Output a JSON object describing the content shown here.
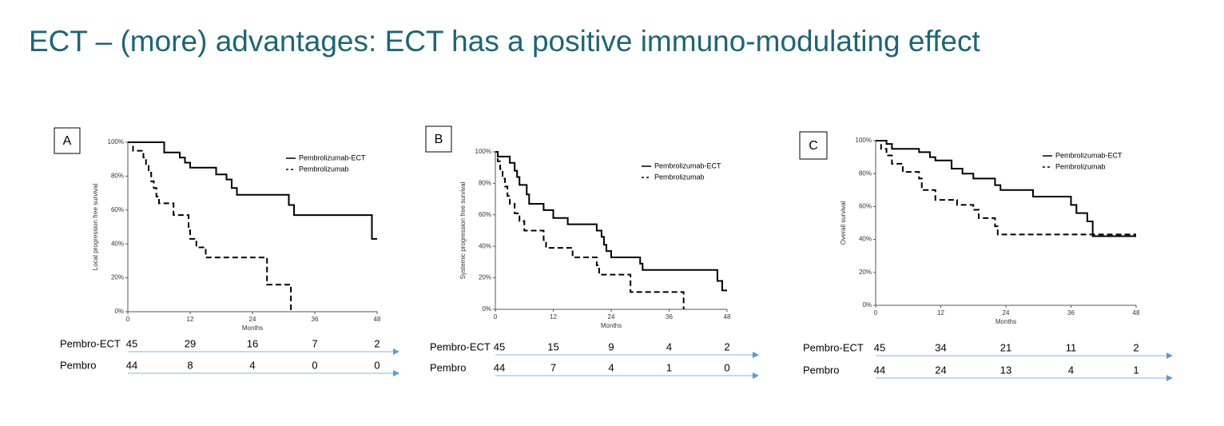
{
  "title": "ECT – (more) advantages: ECT has a positive immuno-modulating effect",
  "chart_data": [
    {
      "type": "step",
      "panel": "A",
      "ylabel": "Local progression free survival",
      "xlabel": "Months",
      "xlim": [
        0,
        48
      ],
      "xticks": [
        0,
        12,
        24,
        36,
        48
      ],
      "ylim": [
        0,
        100
      ],
      "yticks": [
        {
          "value": 0,
          "label": "0%"
        },
        {
          "value": 20,
          "label": "20%"
        },
        {
          "value": 40,
          "label": "40%"
        },
        {
          "value": 60,
          "label": "60%"
        },
        {
          "value": 80,
          "label": "80%"
        },
        {
          "value": 100,
          "label": "100%"
        }
      ],
      "series": [
        {
          "name": "Pembrolizumab-ECT",
          "color": "#000000",
          "line_style": "solid",
          "x": [
            0,
            7,
            10,
            11,
            12,
            17,
            19,
            20,
            21,
            31,
            32,
            47,
            48
          ],
          "values": [
            100,
            94,
            91,
            88,
            85,
            81,
            78,
            73,
            69,
            63,
            57,
            43,
            43
          ]
        },
        {
          "name": "Pembrolizumab",
          "color": "#000000",
          "line_style": "dashed",
          "x": [
            0,
            1,
            3,
            3.5,
            4,
            4.5,
            5,
            5.5,
            6,
            8.8,
            11.7,
            12,
            13.2,
            15,
            26.8,
            31.4
          ],
          "values": [
            100,
            95,
            91,
            86,
            82,
            77,
            73,
            68,
            64,
            57,
            48,
            43,
            38,
            32,
            16,
            0
          ]
        }
      ],
      "risk_table": {
        "rows": [
          {
            "label": "Pembro-ECT",
            "values": [
              45,
              29,
              16,
              7,
              2
            ]
          },
          {
            "label": "Pembro",
            "values": [
              44,
              8,
              4,
              0,
              0
            ]
          }
        ]
      }
    },
    {
      "type": "step",
      "panel": "B",
      "ylabel": "Systemic progression free survival",
      "xlabel": "Months",
      "xlim": [
        0,
        48
      ],
      "xticks": [
        0,
        12,
        24,
        36,
        48
      ],
      "ylim": [
        0,
        100
      ],
      "yticks": [
        {
          "value": 0,
          "label": "0%"
        },
        {
          "value": 20,
          "label": "20%"
        },
        {
          "value": 40,
          "label": "40%"
        },
        {
          "value": 60,
          "label": "60%"
        },
        {
          "value": 80,
          "label": "80%"
        },
        {
          "value": 100,
          "label": "100%"
        }
      ],
      "series": [
        {
          "name": "Pembrolizumab-ECT",
          "color": "#000000",
          "line_style": "solid",
          "x": [
            0,
            0.5,
            3,
            4,
            4.5,
            5,
            6.5,
            7,
            10,
            12,
            15,
            21,
            22,
            22.5,
            23,
            24,
            30,
            30.5,
            46,
            47,
            48
          ],
          "values": [
            100,
            97,
            93,
            88,
            84,
            79,
            73,
            67,
            63,
            58,
            54,
            50,
            46,
            41,
            37,
            33,
            29,
            25,
            18,
            12,
            12
          ]
        },
        {
          "name": "Pembrolizumab",
          "color": "#000000",
          "line_style": "dashed",
          "x": [
            0,
            0.5,
            1,
            1.5,
            2,
            2.5,
            3,
            4,
            5,
            6,
            10,
            10.5,
            16,
            21,
            21.5,
            28,
            39
          ],
          "values": [
            100,
            94,
            89,
            83,
            78,
            72,
            67,
            61,
            56,
            50,
            44,
            39,
            33,
            28,
            22,
            11,
            0
          ]
        }
      ],
      "risk_table": {
        "rows": [
          {
            "label": "Pembro-ECT",
            "values": [
              45,
              15,
              9,
              4,
              2
            ]
          },
          {
            "label": "Pembro",
            "values": [
              44,
              7,
              4,
              1,
              0
            ]
          }
        ]
      }
    },
    {
      "type": "step",
      "panel": "C",
      "ylabel": "Overall survival",
      "xlabel": "Months",
      "xlim": [
        0,
        48
      ],
      "xticks": [
        0,
        12,
        24,
        36,
        48
      ],
      "ylim": [
        0,
        100
      ],
      "yticks": [
        {
          "value": 0,
          "label": "0%"
        },
        {
          "value": 20,
          "label": "20%"
        },
        {
          "value": 40,
          "label": "40%"
        },
        {
          "value": 60,
          "label": "60%"
        },
        {
          "value": 80,
          "label": "80%"
        },
        {
          "value": 100,
          "label": "100%"
        }
      ],
      "series": [
        {
          "name": "Pembrolizumab-ECT",
          "color": "#000000",
          "line_style": "solid",
          "x": [
            0,
            2,
            3,
            8,
            10,
            11,
            14,
            16,
            18,
            22,
            23,
            29,
            36,
            37,
            39,
            40,
            48
          ],
          "values": [
            100,
            98,
            95,
            93,
            90,
            88,
            83,
            80,
            77,
            73,
            70,
            66,
            61,
            56,
            51,
            42,
            42
          ]
        },
        {
          "name": "Pembrolizumab",
          "color": "#000000",
          "line_style": "dashed",
          "x": [
            0,
            1,
            2,
            3,
            5,
            8,
            8.5,
            11,
            15,
            18,
            19,
            22,
            22.5,
            48
          ],
          "values": [
            100,
            95,
            91,
            86,
            81,
            77,
            70,
            64,
            61,
            58,
            53,
            48,
            43,
            43
          ]
        }
      ],
      "risk_table": {
        "rows": [
          {
            "label": "Pembro-ECT",
            "values": [
              45,
              34,
              21,
              11,
              2
            ]
          },
          {
            "label": "Pembro",
            "values": [
              44,
              24,
              13,
              4,
              1
            ]
          }
        ]
      }
    }
  ]
}
